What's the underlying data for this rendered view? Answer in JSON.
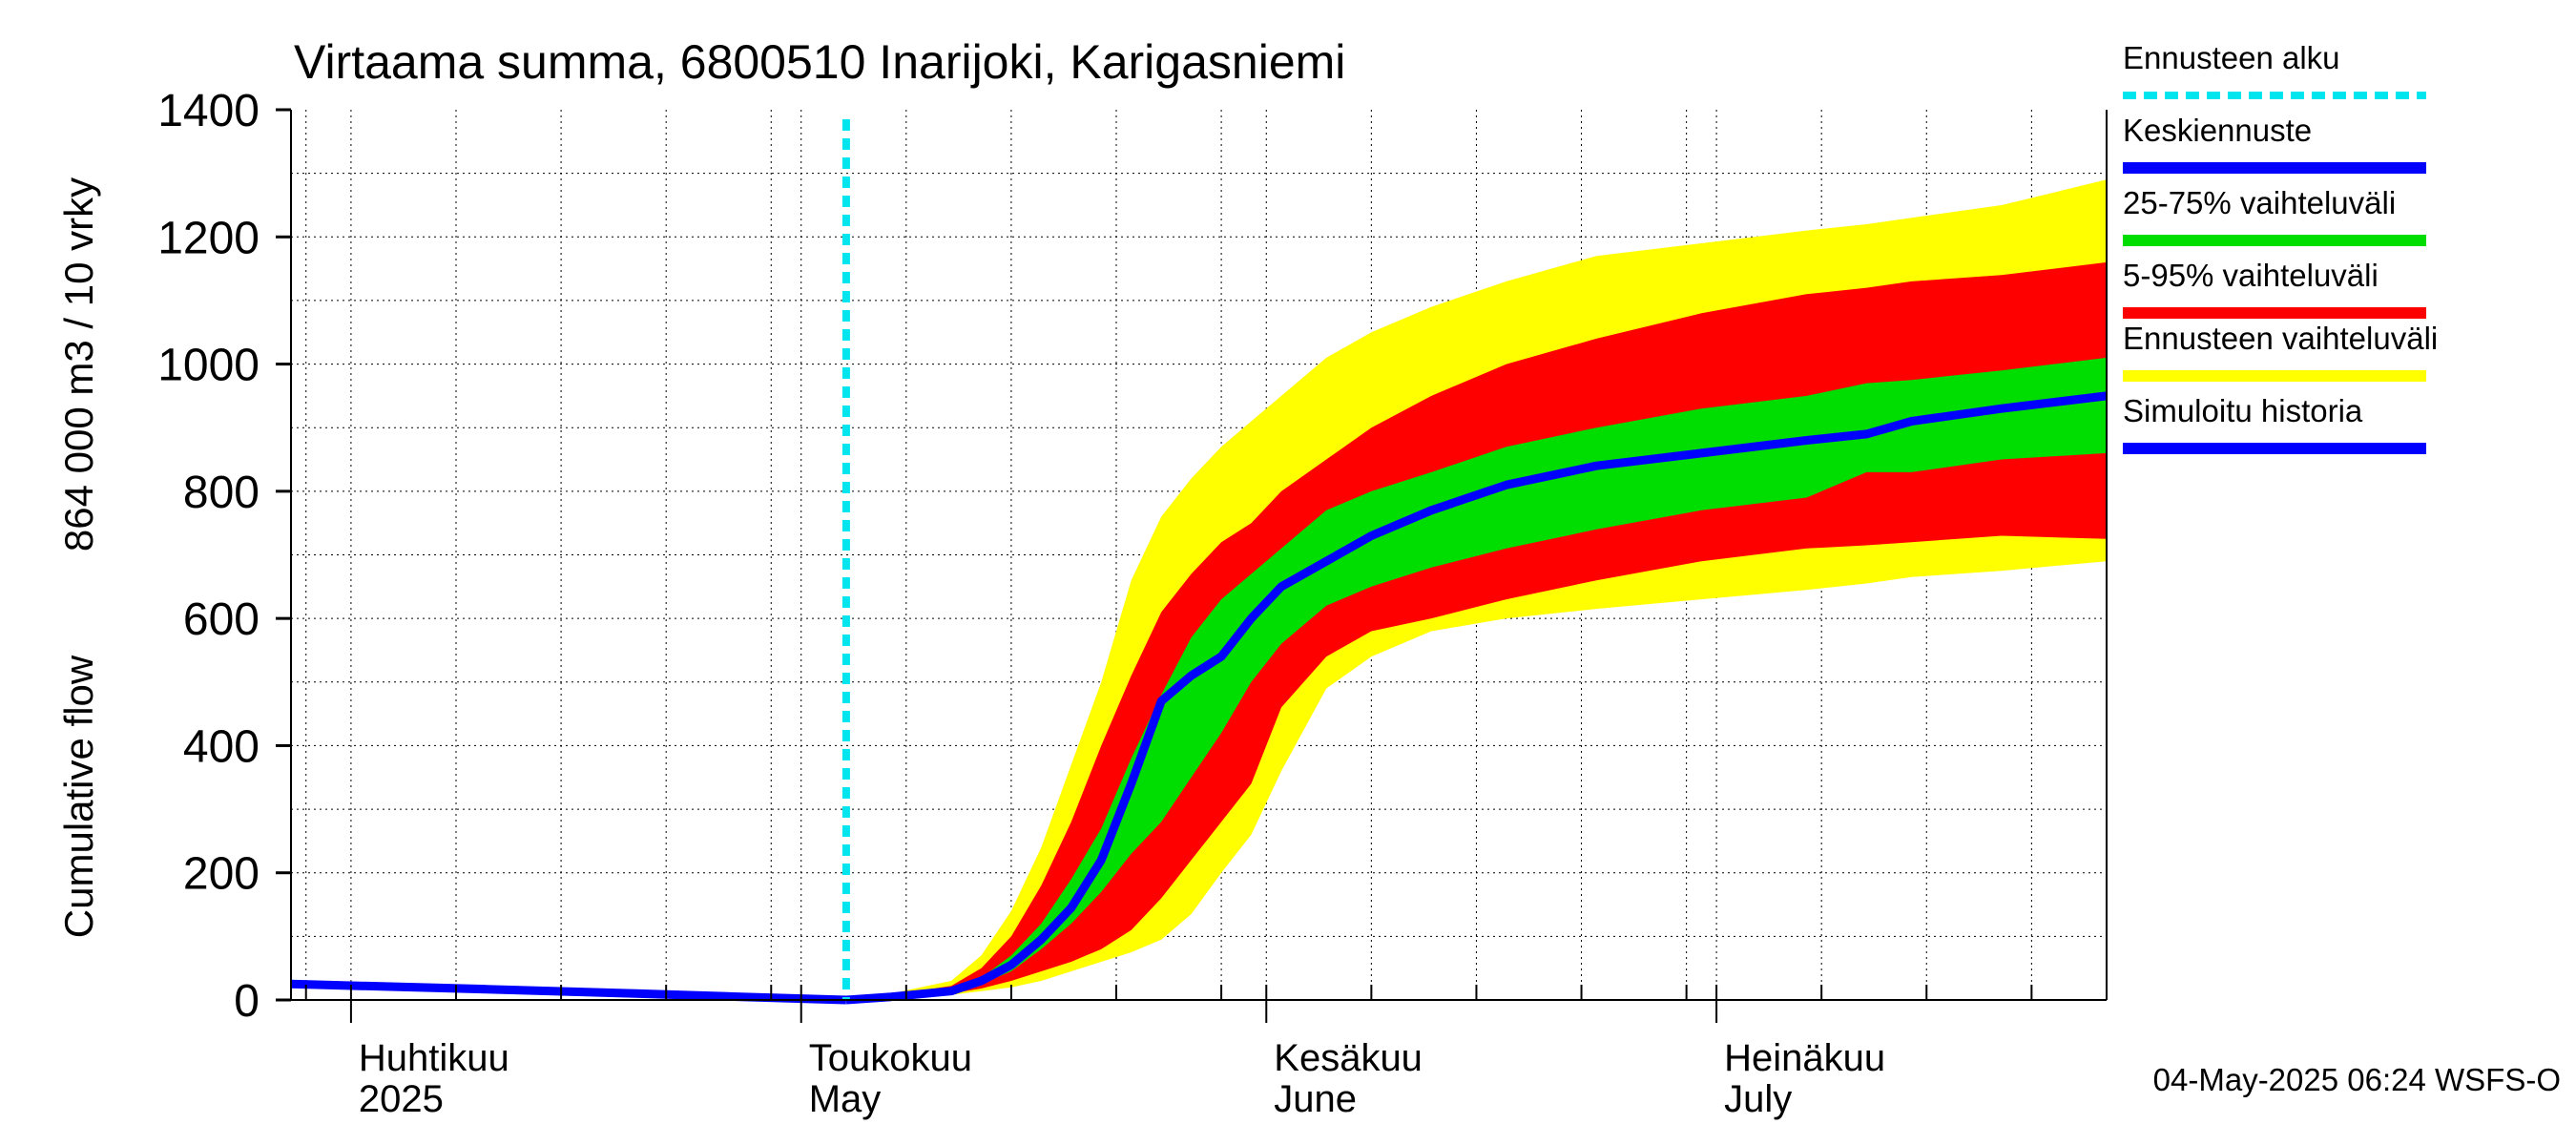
{
  "chart_data": {
    "type": "area",
    "title": "Virtaama summa, 6800510 Inarijoki, Karigasniemi",
    "ylabel_line1": "Cumulative flow",
    "ylabel_line2": "864 000 m3 / 10 vrky",
    "ylim": [
      0,
      1400
    ],
    "yticks": [
      0,
      200,
      400,
      600,
      800,
      1000,
      1200,
      1400
    ],
    "xlim": [
      "2025-03-28",
      "2025-07-27"
    ],
    "x_label_dates": [
      "2025-04-01",
      "2025-05-01",
      "2025-06-01",
      "2025-07-01"
    ],
    "month_labels_fi": [
      "Huhtikuu",
      "Toukokuu",
      "Kesäkuu",
      "Heinäkuu"
    ],
    "month_labels_en": [
      "2025",
      "May",
      "June",
      "July"
    ],
    "grid": true,
    "forecast_start": "2025-05-04",
    "legend": [
      {
        "label": "Ennusteen alku",
        "color": "#00e5ee",
        "style": "dotted"
      },
      {
        "label": "Keskiennuste",
        "color": "#0000ff",
        "style": "solid"
      },
      {
        "label": "25-75% vaihteluväli",
        "color": "#00dd00",
        "style": "solid"
      },
      {
        "label": "5-95% vaihteluväli",
        "color": "#ff0000",
        "style": "solid"
      },
      {
        "label": "Ennusteen vaihteluväli",
        "color": "#ffff00",
        "style": "solid"
      },
      {
        "label": "Simuloitu historia",
        "color": "#0000ff",
        "style": "solid"
      }
    ],
    "history": {
      "x": [
        "2025-03-28",
        "2025-04-10",
        "2025-04-20",
        "2025-04-27",
        "2025-05-04"
      ],
      "y": [
        25,
        17,
        10,
        5,
        0
      ]
    },
    "bands": {
      "x": [
        "2025-05-04",
        "2025-05-07",
        "2025-05-11",
        "2025-05-13",
        "2025-05-15",
        "2025-05-17",
        "2025-05-19",
        "2025-05-21",
        "2025-05-23",
        "2025-05-25",
        "2025-05-27",
        "2025-05-29",
        "2025-05-31",
        "2025-06-02",
        "2025-06-05",
        "2025-06-08",
        "2025-06-12",
        "2025-06-17",
        "2025-06-23",
        "2025-06-30",
        "2025-07-07",
        "2025-07-11",
        "2025-07-14",
        "2025-07-20",
        "2025-07-27"
      ],
      "p0": [
        0,
        2,
        8,
        14,
        20,
        30,
        45,
        60,
        75,
        95,
        135,
        200,
        260,
        360,
        490,
        540,
        580,
        600,
        615,
        630,
        645,
        655,
        665,
        675,
        690
      ],
      "p5": [
        0,
        3,
        10,
        18,
        30,
        45,
        60,
        80,
        110,
        160,
        220,
        280,
        340,
        460,
        540,
        580,
        600,
        630,
        660,
        690,
        710,
        715,
        720,
        730,
        725
      ],
      "p25": [
        0,
        4,
        12,
        25,
        45,
        80,
        120,
        170,
        230,
        280,
        350,
        420,
        500,
        560,
        620,
        650,
        680,
        710,
        740,
        770,
        790,
        830,
        830,
        850,
        860
      ],
      "p75": [
        0,
        6,
        16,
        35,
        70,
        120,
        190,
        270,
        380,
        480,
        570,
        630,
        670,
        710,
        770,
        800,
        830,
        870,
        900,
        930,
        950,
        970,
        975,
        990,
        1010
      ],
      "p95": [
        0,
        8,
        22,
        50,
        100,
        180,
        280,
        400,
        510,
        610,
        670,
        720,
        750,
        800,
        850,
        900,
        950,
        1000,
        1040,
        1080,
        1110,
        1120,
        1130,
        1140,
        1160
      ],
      "p100": [
        0,
        10,
        30,
        70,
        140,
        240,
        370,
        500,
        660,
        760,
        820,
        870,
        910,
        950,
        1010,
        1050,
        1090,
        1130,
        1170,
        1190,
        1210,
        1220,
        1230,
        1250,
        1290
      ],
      "median": [
        0,
        5,
        14,
        30,
        55,
        95,
        145,
        220,
        340,
        470,
        510,
        540,
        600,
        650,
        690,
        730,
        770,
        810,
        840,
        860,
        880,
        890,
        910,
        930,
        950
      ]
    }
  },
  "footer": {
    "timestamp": "04-May-2025 06:24 WSFS-O"
  }
}
